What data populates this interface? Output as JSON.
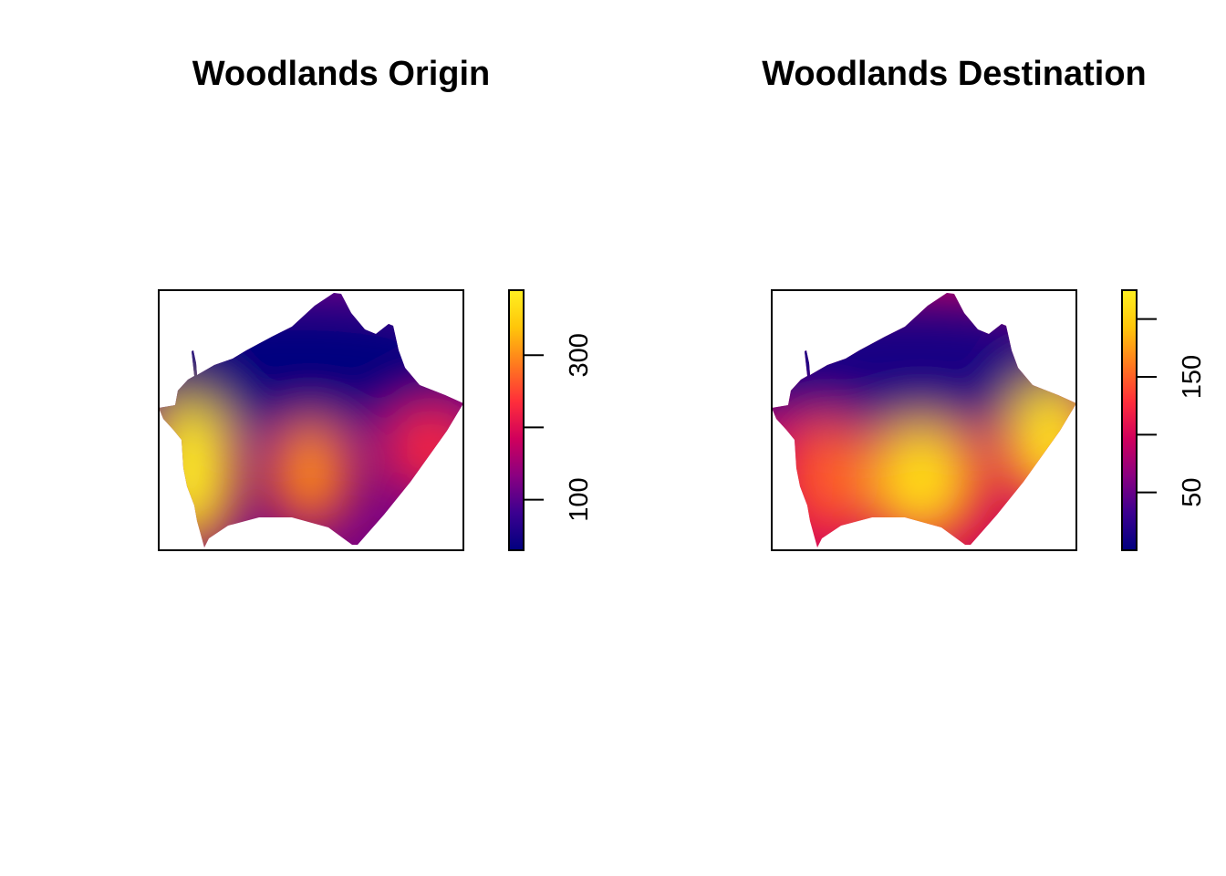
{
  "chart_data": [
    {
      "type": "heatmap",
      "title": "Woodlands Origin",
      "xlabel": "",
      "ylabel": "",
      "colorbar": {
        "ticks": [
          100,
          200,
          300
        ],
        "tick_labels": [
          "100",
          "",
          "300"
        ],
        "range": [
          30,
          390
        ]
      },
      "hotspots": [
        {
          "label": "west",
          "value": 390
        },
        {
          "label": "center-south",
          "value": 300
        },
        {
          "label": "south-east",
          "value": 230
        },
        {
          "label": "north",
          "value": 30
        }
      ],
      "colormap": [
        "#00007F",
        "#3B0090",
        "#8A0081",
        "#D0005C",
        "#FF2E3A",
        "#FF7A1E",
        "#FFC60A",
        "#FFF021"
      ],
      "legend": "right"
    },
    {
      "type": "heatmap",
      "title": "Woodlands Destination",
      "xlabel": "",
      "ylabel": "",
      "colorbar": {
        "ticks": [
          50,
          100,
          150,
          200
        ],
        "tick_labels": [
          "50",
          "",
          "150",
          ""
        ],
        "range": [
          0,
          225
        ]
      },
      "hotspots": [
        {
          "label": "center-south",
          "value": 210
        },
        {
          "label": "east",
          "value": 215
        },
        {
          "label": "west",
          "value": 150
        },
        {
          "label": "north",
          "value": 10
        }
      ],
      "colormap": [
        "#00007F",
        "#3B0090",
        "#8A0081",
        "#D0005C",
        "#FF2E3A",
        "#FF7A1E",
        "#FFC60A",
        "#FFF021"
      ],
      "legend": "right"
    }
  ]
}
